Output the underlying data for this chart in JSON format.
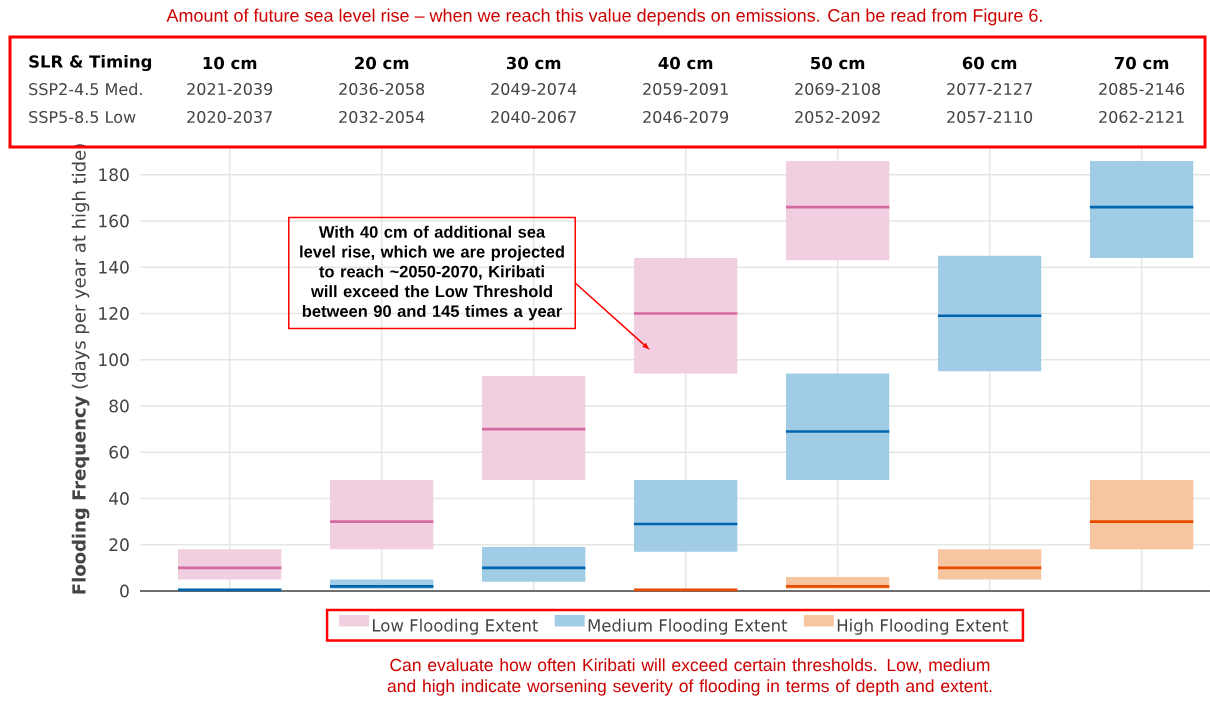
{
  "chart_data": {
    "type": "box",
    "title": "Amount of future sea level rise – when we reach this value depends on emissions. Can be read from Figure 6.",
    "ylabel": "**Flooding Frequency** (days per year at high tide)",
    "categories": [
      "10 cm",
      "20 cm",
      "30 cm",
      "40 cm",
      "50 cm",
      "60 cm",
      "70 cm"
    ],
    "series": [
      {
        "name": "Low Flooding Extent",
        "color": "#f1cfe1",
        "boxes": [
          {
            "low": 5,
            "q1": 5,
            "median": 10,
            "q3": 18,
            "high": 18
          },
          {
            "low": 18,
            "q1": 18,
            "median": 30,
            "q3": 48,
            "high": 48
          },
          {
            "low": 48,
            "q1": 48,
            "median": 70,
            "q3": 93,
            "high": 93
          },
          {
            "low": 94,
            "q1": 94,
            "median": 120,
            "q3": 144,
            "high": 144
          },
          {
            "low": 143,
            "q1": 143,
            "median": 166,
            "q3": 186,
            "high": 186
          },
          null,
          null
        ]
      },
      {
        "name": "Medium Flooding Extent",
        "color": "#a0cde5",
        "boxes": [
          {
            "low": 0,
            "q1": 0,
            "median": 0.5,
            "q3": 1,
            "high": 1
          },
          {
            "low": 1,
            "q1": 1,
            "median": 2,
            "q3": 5,
            "high": 5
          },
          {
            "low": 4,
            "q1": 4,
            "median": 10,
            "q3": 19,
            "high": 19
          },
          {
            "low": 17,
            "q1": 17,
            "median": 29,
            "q3": 48,
            "high": 48
          },
          {
            "low": 48,
            "q1": 48,
            "median": 69,
            "q3": 94,
            "high": 94
          },
          {
            "low": 95,
            "q1": 95,
            "median": 119,
            "q3": 145,
            "high": 145
          },
          {
            "low": 144,
            "q1": 144,
            "median": 166,
            "q3": 186,
            "high": 186
          }
        ]
      },
      {
        "name": "High Flooding Extent",
        "color": "#f7c5a0",
        "boxes": [
          null,
          null,
          null,
          {
            "low": 0,
            "q1": 0,
            "median": 0.5,
            "q3": 1,
            "high": 1
          },
          {
            "low": 1,
            "q1": 1,
            "median": 2,
            "q3": 6,
            "high": 6
          },
          {
            "low": 5,
            "q1": 5,
            "median": 10,
            "q3": 18,
            "high": 18
          },
          {
            "low": 18,
            "q1": 18,
            "median": 30,
            "q3": 48,
            "high": 48
          }
        ]
      }
    ],
    "ylim": [
      0,
      192
    ],
    "yticks": [
      0,
      20,
      40,
      60,
      80,
      100,
      120,
      140,
      160,
      180
    ],
    "grid": true,
    "legend": "bottom",
    "annotations": [
      "With 40 cm of additional sea level rise, which we are projected to reach ~2050-2070, Kiribati will exceed the Low Threshold between 90 and 145 times a year",
      "SLR & Timing",
      "SSP2-4.5 Med.",
      "2021-2039",
      "2036-2058",
      "2049-2074",
      "2059-2091",
      "2069-2108",
      "2077-2127",
      "2085-2146",
      "SSP5-8.5 Low",
      "2020-2037",
      "2032-2054",
      "2040-2067",
      "2046-2079",
      "2052-2092",
      "2057-2110",
      "2062-2121",
      "Can evaluate how often Kiribati will exceed certain thresholds. Low, medium and high indicate worsening severity of flooding in terms of depth and extent."
    ]
  }
}
